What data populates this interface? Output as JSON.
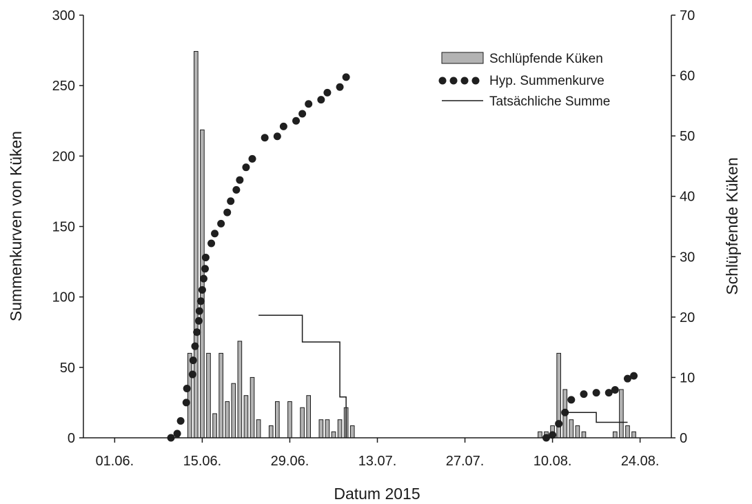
{
  "chart_data": {
    "type": "bar",
    "title": "",
    "xlabel": "Datum 2015",
    "ylabel_left": "Summenkurven von Küken",
    "ylabel_right": "Schlüpfende Küken",
    "x_ticks": [
      "01.06.",
      "15.06.",
      "29.06.",
      "13.07.",
      "27.07.",
      "10.08.",
      "24.08."
    ],
    "x_range": [
      "2015-05-27",
      "2015-08-29"
    ],
    "ylim_left": [
      0,
      300
    ],
    "yticks_left": [
      0,
      50,
      100,
      150,
      200,
      250,
      300
    ],
    "ylim_right": [
      0,
      70
    ],
    "yticks_right": [
      0,
      10,
      20,
      30,
      40,
      50,
      60,
      70
    ],
    "grid": false,
    "legend_position": "top-right",
    "legend": [
      "Schlüpfende Küken",
      "Hyp. Summenkurve",
      "Tatsächliche Summe"
    ],
    "colors": {
      "bar_fill": "#b3b3b3",
      "bar_stroke": "#1a1a1a",
      "dots": "#1f1f1f",
      "line": "#1a1a1a"
    },
    "series": [
      {
        "name": "Schlüpfende Küken",
        "axis": "right",
        "type": "bar",
        "points": [
          [
            "2015-06-11",
            1
          ],
          [
            "2015-06-13",
            14
          ],
          [
            "2015-06-14",
            64
          ],
          [
            "2015-06-15",
            51
          ],
          [
            "2015-06-16",
            14
          ],
          [
            "2015-06-17",
            4
          ],
          [
            "2015-06-18",
            14
          ],
          [
            "2015-06-19",
            6
          ],
          [
            "2015-06-20",
            9
          ],
          [
            "2015-06-21",
            16
          ],
          [
            "2015-06-22",
            7
          ],
          [
            "2015-06-23",
            10
          ],
          [
            "2015-06-24",
            3
          ],
          [
            "2015-06-26",
            2
          ],
          [
            "2015-06-27",
            6
          ],
          [
            "2015-06-29",
            6
          ],
          [
            "2015-07-01",
            5
          ],
          [
            "2015-07-02",
            7
          ],
          [
            "2015-07-04",
            3
          ],
          [
            "2015-07-05",
            3
          ],
          [
            "2015-07-06",
            1
          ],
          [
            "2015-07-07",
            3
          ],
          [
            "2015-07-08",
            5
          ],
          [
            "2015-07-09",
            2
          ],
          [
            "2015-08-08",
            1
          ],
          [
            "2015-08-09",
            1
          ],
          [
            "2015-08-10",
            2
          ],
          [
            "2015-08-11",
            14
          ],
          [
            "2015-08-12",
            8
          ],
          [
            "2015-08-13",
            3
          ],
          [
            "2015-08-14",
            2
          ],
          [
            "2015-08-15",
            1
          ],
          [
            "2015-08-20",
            1
          ],
          [
            "2015-08-21",
            8
          ],
          [
            "2015-08-22",
            2
          ],
          [
            "2015-08-23",
            1
          ]
        ]
      },
      {
        "name": "Hyp. Summenkurve",
        "axis": "left",
        "type": "scatter",
        "points": [
          [
            "2015-06-10",
            0
          ],
          [
            "2015-06-11",
            3
          ],
          [
            "2015-06-12",
            12
          ],
          [
            "2015-06-12",
            25
          ],
          [
            "2015-06-13",
            35
          ],
          [
            "2015-06-13",
            45
          ],
          [
            "2015-06-14",
            55
          ],
          [
            "2015-06-14",
            65
          ],
          [
            "2015-06-14",
            75
          ],
          [
            "2015-06-14",
            83
          ],
          [
            "2015-06-15",
            90
          ],
          [
            "2015-06-15",
            97
          ],
          [
            "2015-06-15",
            105
          ],
          [
            "2015-06-15",
            113
          ],
          [
            "2015-06-15",
            120
          ],
          [
            "2015-06-16",
            128
          ],
          [
            "2015-06-16",
            138
          ],
          [
            "2015-06-17",
            145
          ],
          [
            "2015-06-18",
            152
          ],
          [
            "2015-06-19",
            160
          ],
          [
            "2015-06-20",
            168
          ],
          [
            "2015-06-20",
            176
          ],
          [
            "2015-06-21",
            183
          ],
          [
            "2015-06-22",
            192
          ],
          [
            "2015-06-23",
            198
          ],
          [
            "2015-06-25",
            213
          ],
          [
            "2015-06-27",
            214
          ],
          [
            "2015-06-28",
            221
          ],
          [
            "2015-06-30",
            225
          ],
          [
            "2015-07-01",
            230
          ],
          [
            "2015-07-02",
            237
          ],
          [
            "2015-07-04",
            240
          ],
          [
            "2015-07-05",
            245
          ],
          [
            "2015-07-07",
            249
          ],
          [
            "2015-07-08",
            256
          ],
          [
            "2015-08-09",
            0
          ],
          [
            "2015-08-10",
            2
          ],
          [
            "2015-08-11",
            10
          ],
          [
            "2015-08-12",
            18
          ],
          [
            "2015-08-13",
            27
          ],
          [
            "2015-08-15",
            31
          ],
          [
            "2015-08-17",
            32
          ],
          [
            "2015-08-19",
            32
          ],
          [
            "2015-08-20",
            34
          ],
          [
            "2015-08-22",
            42
          ],
          [
            "2015-08-23",
            44
          ]
        ]
      },
      {
        "name": "Tatsächliche Summe",
        "axis": "left",
        "type": "line",
        "step_points": [
          [
            "2015-06-24",
            87
          ],
          [
            "2015-07-01",
            87
          ],
          [
            "2015-07-01",
            68
          ],
          [
            "2015-07-07",
            68
          ],
          [
            "2015-07-07",
            29
          ],
          [
            "2015-07-08",
            29
          ],
          [
            "2015-07-08",
            0
          ],
          [
            "2015-08-12",
            18
          ],
          [
            "2015-08-17",
            18
          ],
          [
            "2015-08-17",
            11
          ],
          [
            "2015-08-22",
            11
          ]
        ]
      }
    ]
  }
}
